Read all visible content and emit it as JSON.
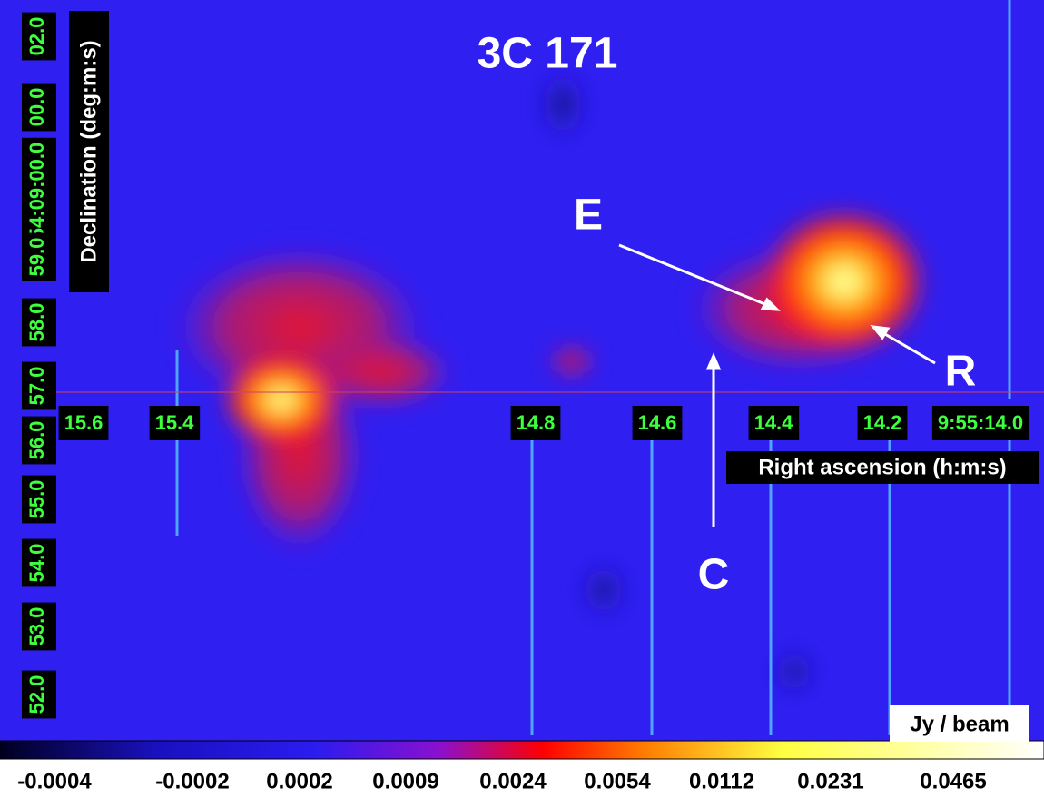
{
  "title": "3C 171",
  "ra_axis": {
    "label": "Right ascension (h:m:s)",
    "ticks": [
      "15.6",
      "15.4",
      "14.8",
      "14.6",
      "14.4",
      "14.2",
      "9:55:14.0"
    ]
  },
  "dec_axis": {
    "label": "Declination (deg:m:s)",
    "ticks": [
      "02.0",
      "00.0",
      "54:09:00.0",
      "59.0",
      "58.0",
      "57.0",
      "56.0",
      "55.0",
      "54.0",
      "53.0",
      "52.0"
    ]
  },
  "annotations": [
    "E",
    "R",
    "C"
  ],
  "colorbar": {
    "unit": "Jy / beam",
    "ticks": [
      "-0.0004",
      "-0.0002",
      "0.0002",
      "0.0009",
      "0.0024",
      "0.0054",
      "0.0112",
      "0.0231",
      "0.0465"
    ]
  }
}
